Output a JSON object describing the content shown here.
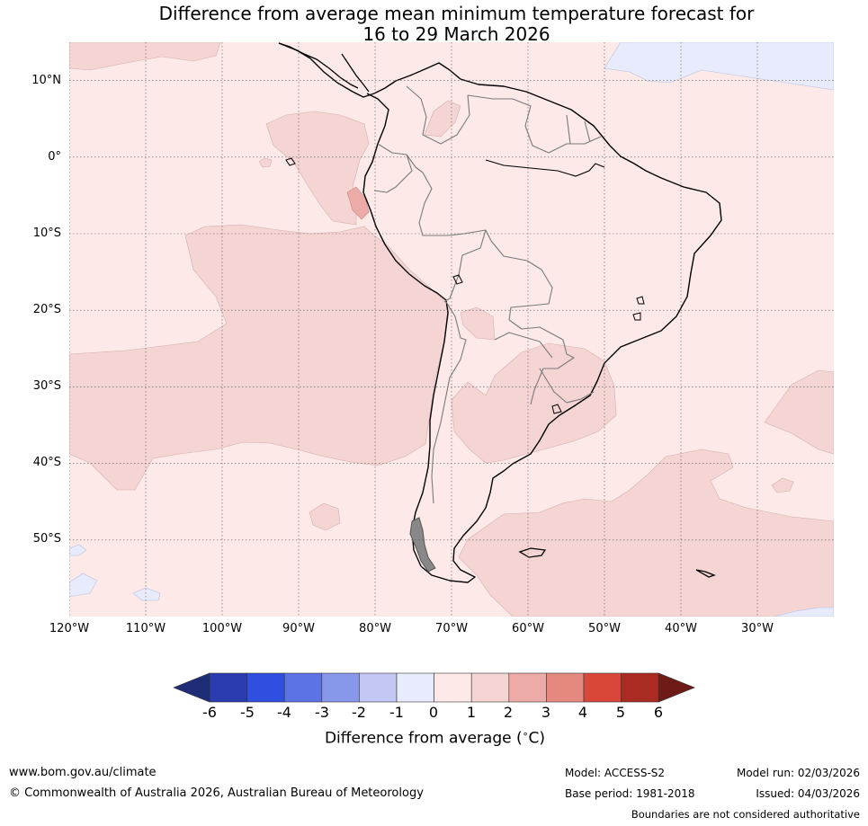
{
  "title": {
    "line1": "Difference from average mean minimum temperature forecast for",
    "line2": "16 to 29 March 2026"
  },
  "map": {
    "lat_labels": [
      "10°N",
      "0°",
      "10°S",
      "20°S",
      "30°S",
      "40°S",
      "50°S"
    ],
    "lon_labels": [
      "120°W",
      "110°W",
      "100°W",
      "90°W",
      "80°W",
      "70°W",
      "60°W",
      "50°W",
      "40°W",
      "30°W"
    ],
    "extent": {
      "lon_min": -120,
      "lon_max": -20,
      "lat_min": -60,
      "lat_max": 15
    },
    "grid_lons": [
      -120,
      -110,
      -100,
      -90,
      -80,
      -70,
      -60,
      -50,
      -40,
      -30
    ],
    "grid_lats": [
      10,
      0,
      -10,
      -20,
      -30,
      -40,
      -50
    ]
  },
  "colorbar": {
    "ticks": [
      "-6",
      "-5",
      "-4",
      "-3",
      "-2",
      "-1",
      "0",
      "1",
      "2",
      "3",
      "4",
      "5",
      "6"
    ],
    "colors": [
      "#1f2d78",
      "#2a3cb0",
      "#2f4fe0",
      "#5c73e6",
      "#8797ea",
      "#c2c8f3",
      "#e8ebfb",
      "#fce9e8",
      "#f5d5d3",
      "#ecaba6",
      "#e58880",
      "#d9473b",
      "#aa2b22",
      "#6e1b16"
    ],
    "label": "Difference from average (°C)",
    "label_base": "Difference from average (",
    "label_unit": "∘",
    "label_tail": "C)"
  },
  "footer": {
    "website": "www.bom.gov.au/climate",
    "copyright": "© Commonwealth of Australia 2026, Australian Bureau of Meteorology",
    "model": "Model: ACCESS-S2",
    "model_run": "Model run: 02/03/2026",
    "base_period": "Base period: 1981-2018",
    "issued": "Issued: 04/03/2026",
    "disclaimer": "Boundaries are not considered authoritative"
  }
}
